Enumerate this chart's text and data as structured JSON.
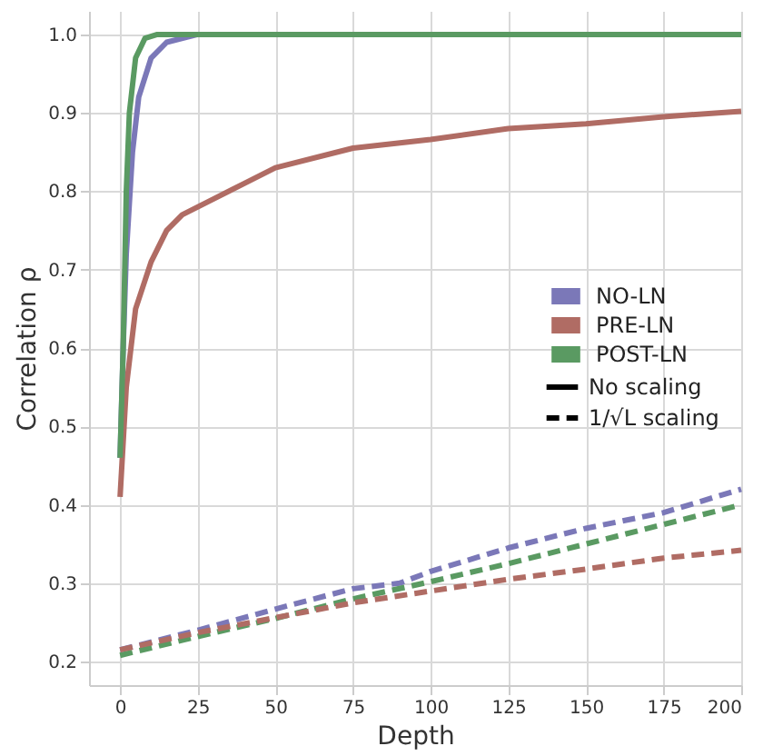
{
  "chart_data": {
    "type": "line",
    "xlabel": "Depth",
    "ylabel": "Correlation ρ",
    "xlim": [
      -10,
      200
    ],
    "ylim": [
      0.17,
      1.03
    ],
    "xticks": [
      0,
      25,
      50,
      75,
      100,
      125,
      150,
      175,
      200
    ],
    "yticks": [
      0.2,
      0.3,
      0.4,
      0.5,
      0.6,
      0.7,
      0.8,
      0.9,
      {
        "value": 1.0,
        "label": "1.0"
      }
    ],
    "grid": true,
    "legend": "right",
    "marker": "none",
    "annotations": [
      "No scaling",
      "1/√L scaling"
    ],
    "series": [
      {
        "name": "NO-LN",
        "color": "#7b78b8",
        "line_style": "solid",
        "x": [
          0,
          1,
          2,
          4,
          6,
          10,
          15,
          25
        ],
        "values": [
          0.46,
          0.6,
          0.72,
          0.85,
          0.92,
          0.97,
          0.99,
          1.0
        ]
      },
      {
        "name": "PRE-LN",
        "color": "#b06c64",
        "line_style": "solid",
        "x": [
          0,
          2,
          5,
          10,
          15,
          20,
          30,
          40,
          50,
          75,
          100,
          125,
          150,
          175,
          200
        ],
        "values": [
          0.41,
          0.55,
          0.65,
          0.71,
          0.75,
          0.77,
          0.79,
          0.81,
          0.83,
          0.855,
          0.866,
          0.88,
          0.886,
          0.895,
          0.902
        ]
      },
      {
        "name": "POST-LN",
        "color": "#5a9a62",
        "line_style": "solid",
        "x": [
          0,
          1,
          2,
          3,
          5,
          8,
          12,
          50,
          100,
          200
        ],
        "values": [
          0.46,
          0.6,
          0.8,
          0.9,
          0.97,
          0.995,
          1.0,
          1.0,
          1.0,
          1.0
        ]
      },
      {
        "color": "#7b78b8",
        "line_style": "dashed",
        "x": [
          0,
          25,
          50,
          75,
          90,
          100,
          125,
          150,
          175,
          200
        ],
        "values": [
          0.215,
          0.24,
          0.267,
          0.293,
          0.3,
          0.315,
          0.345,
          0.37,
          0.39,
          0.42
        ]
      },
      {
        "color": "#5a9a62",
        "line_style": "dashed",
        "x": [
          0,
          25,
          50,
          75,
          100,
          125,
          150,
          175,
          200
        ],
        "values": [
          0.208,
          0.232,
          0.255,
          0.28,
          0.302,
          0.325,
          0.35,
          0.375,
          0.4
        ]
      },
      {
        "color": "#b06c64",
        "line_style": "dashed",
        "x": [
          0,
          25,
          50,
          75,
          100,
          125,
          150,
          175,
          200
        ],
        "values": [
          0.215,
          0.237,
          0.256,
          0.275,
          0.29,
          0.305,
          0.318,
          0.332,
          0.342
        ]
      }
    ]
  }
}
